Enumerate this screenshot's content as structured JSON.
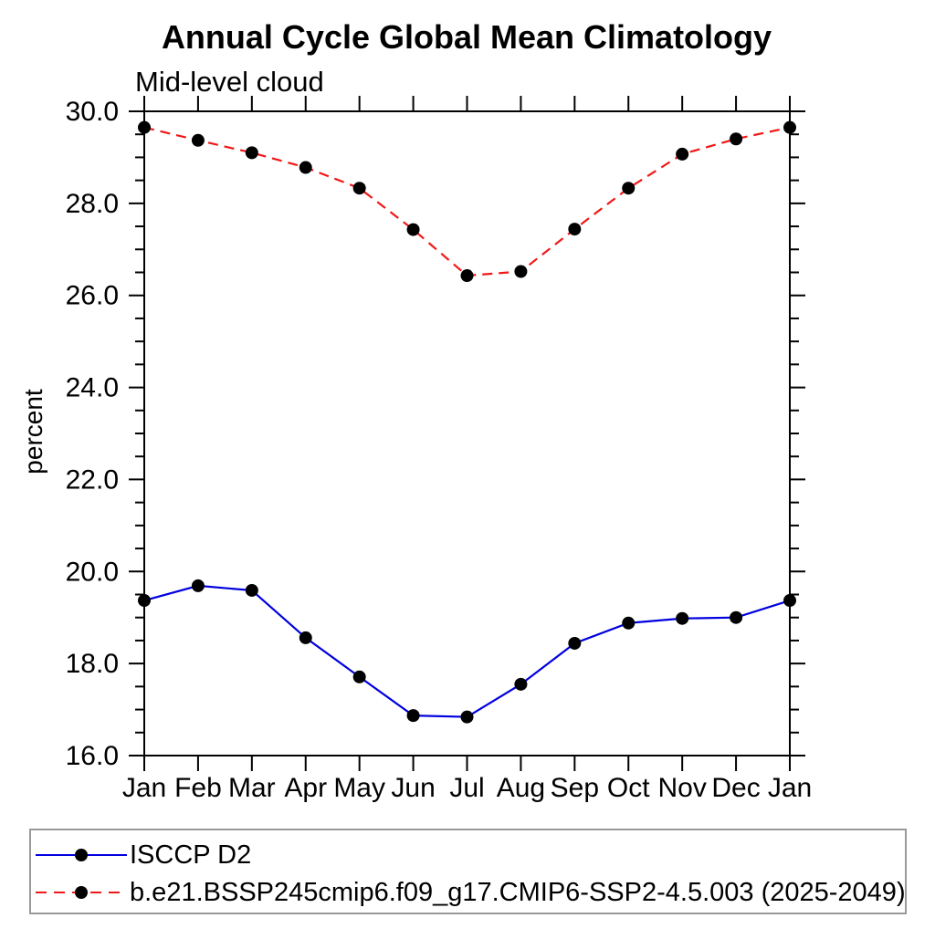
{
  "chart_data": {
    "type": "line",
    "title": "Annual Cycle Global Mean Climatology",
    "subtitle": "Mid-level cloud",
    "ylabel": "percent",
    "xlabel": "",
    "categories": [
      "Jan",
      "Feb",
      "Mar",
      "Apr",
      "May",
      "Jun",
      "Jul",
      "Aug",
      "Sep",
      "Oct",
      "Nov",
      "Dec",
      "Jan"
    ],
    "ylim": [
      16.0,
      30.0
    ],
    "ytick_major_step": 2.0,
    "ytick_minor_step": 0.5,
    "ytick_label_format": "one_decimal",
    "grid": false,
    "axis_color": "#000000",
    "legend_position": "bottom-left",
    "legend_border_color": "#999999",
    "series": [
      {
        "name": "ISCCP D2",
        "color": "#0000e0",
        "line_style": "solid",
        "marker": "circle",
        "marker_color": "#000000",
        "values": [
          19.37,
          19.69,
          19.59,
          18.56,
          17.71,
          16.87,
          16.84,
          17.55,
          18.44,
          18.88,
          18.98,
          19.0,
          19.37
        ]
      },
      {
        "name": "b.e21.BSSP245cmip6.f09_g17.CMIP6-SSP2-4.5.003 (2025-2049)",
        "color": "#f01818",
        "line_style": "dashed",
        "marker": "circle",
        "marker_color": "#000000",
        "values": [
          29.65,
          29.37,
          29.1,
          28.78,
          28.33,
          27.43,
          26.43,
          26.52,
          27.44,
          28.33,
          29.07,
          29.4,
          29.65
        ]
      }
    ]
  }
}
